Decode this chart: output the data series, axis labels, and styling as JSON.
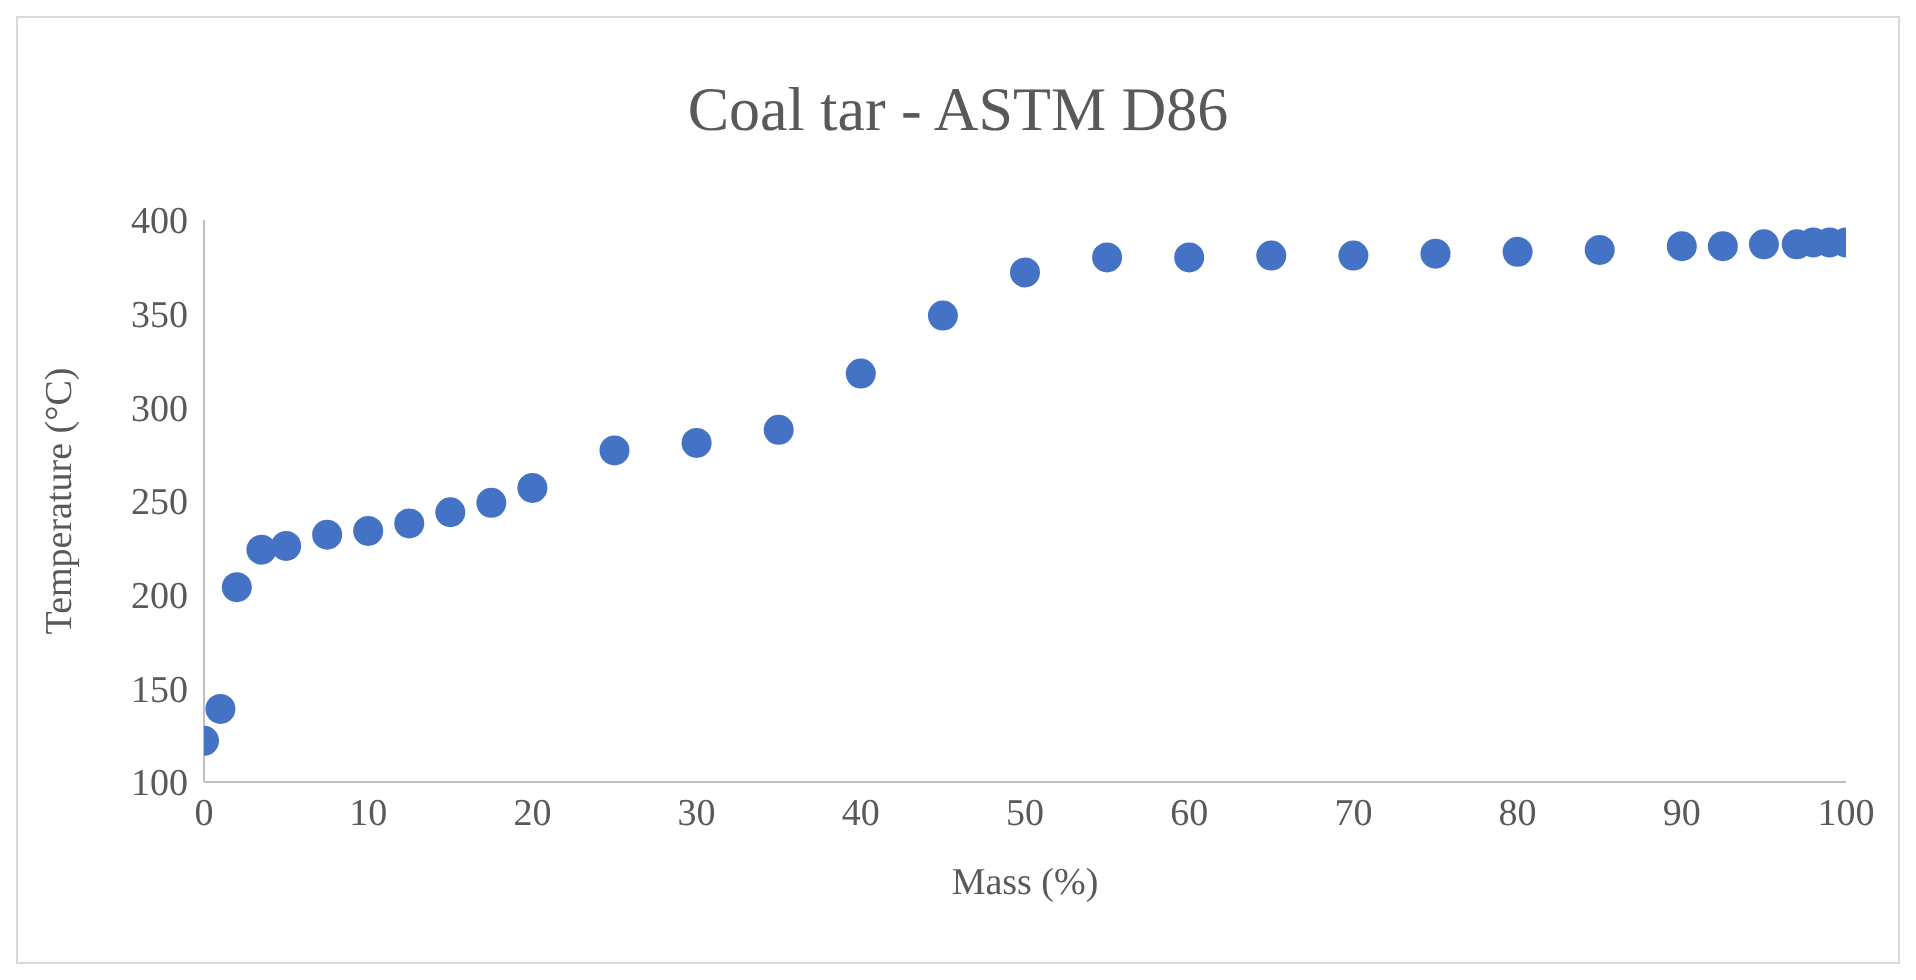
{
  "chart_data": {
    "type": "scatter",
    "title": "Coal tar - ASTM D86",
    "xlabel": "Mass (%)",
    "ylabel": "Temperature (°C)",
    "x": [
      0,
      1,
      2,
      3.5,
      5,
      7.5,
      10,
      12.5,
      15,
      17.5,
      20,
      25,
      30,
      35,
      40,
      45,
      50,
      55,
      60,
      65,
      70,
      75,
      80,
      85,
      90,
      92.5,
      95,
      97,
      98,
      99,
      100
    ],
    "series": [
      {
        "color": "#4472c4",
        "values": [
          122,
          139,
          204,
          224,
          226,
          232,
          234,
          238,
          244,
          249,
          257,
          277,
          281,
          288,
          318,
          349,
          372,
          380,
          380,
          381,
          381,
          382,
          383,
          384,
          386,
          386,
          387,
          387,
          388,
          388,
          388
        ]
      }
    ],
    "xlim": [
      0,
      100
    ],
    "xticks": [
      0,
      10,
      20,
      30,
      40,
      50,
      60,
      70,
      80,
      90,
      100
    ],
    "ylim": [
      100,
      400
    ],
    "yticks": [
      100,
      150,
      200,
      250,
      300,
      350,
      400
    ],
    "marker": "circle"
  }
}
